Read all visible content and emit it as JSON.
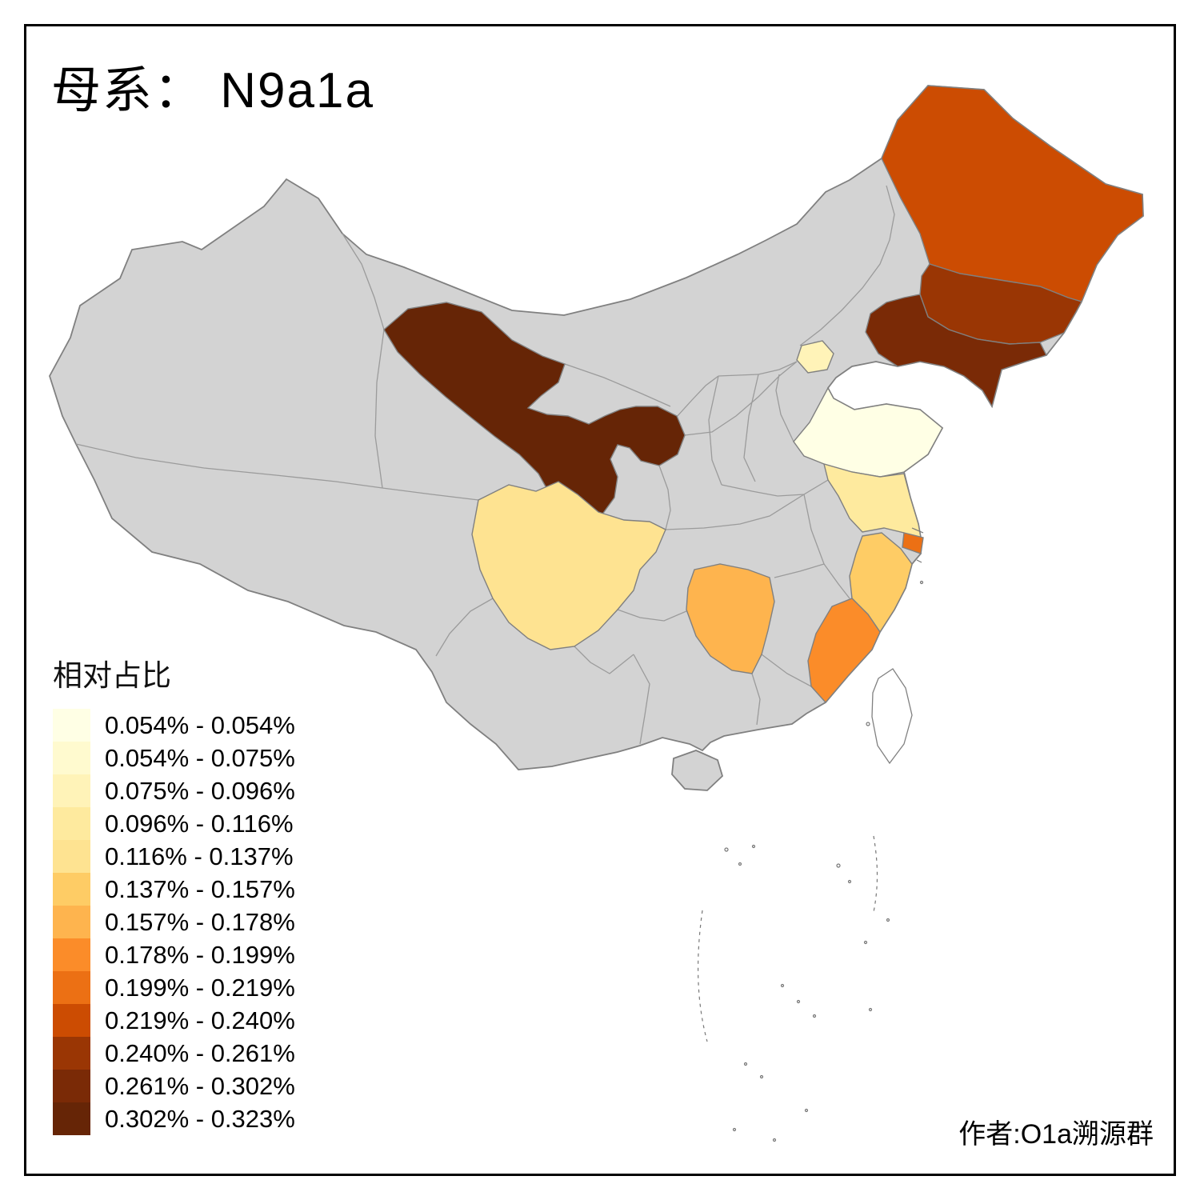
{
  "title": {
    "text": "母系： N9a1a"
  },
  "legend": {
    "title": "相对占比",
    "items": [
      {
        "label": "0.054% - 0.054%",
        "color": "#ffffe5"
      },
      {
        "label": "0.054% - 0.075%",
        "color": "#fffacf"
      },
      {
        "label": "0.075% - 0.096%",
        "color": "#fff3b8"
      },
      {
        "label": "0.096% - 0.116%",
        "color": "#feea9e"
      },
      {
        "label": "0.116% - 0.137%",
        "color": "#fee391"
      },
      {
        "label": "0.137% - 0.157%",
        "color": "#fecc65"
      },
      {
        "label": "0.157% - 0.178%",
        "color": "#feb44e"
      },
      {
        "label": "0.178% - 0.199%",
        "color": "#fb8c29"
      },
      {
        "label": "0.199% - 0.219%",
        "color": "#ec7014"
      },
      {
        "label": "0.219% - 0.240%",
        "color": "#cc4c02"
      },
      {
        "label": "0.240% - 0.261%",
        "color": "#9a3604"
      },
      {
        "label": "0.261% - 0.302%",
        "color": "#7a2a06"
      },
      {
        "label": "0.302% - 0.323%",
        "color": "#662506"
      }
    ]
  },
  "author": {
    "text": "作者:O1a溯源群"
  },
  "map": {
    "default_fill": "#d3d3d3",
    "border_color": "#808080",
    "inner_border_color": "#9b9b9b",
    "no_data_island_fill": "#ffffff",
    "provinces": [
      {
        "id": "shandong",
        "bucket": 0
      },
      {
        "id": "beijing",
        "bucket": 2
      },
      {
        "id": "jiangsu",
        "bucket": 3
      },
      {
        "id": "sichuan",
        "bucket": 4
      },
      {
        "id": "zhejiang",
        "bucket": 5
      },
      {
        "id": "hunan",
        "bucket": 6
      },
      {
        "id": "fujian",
        "bucket": 7
      },
      {
        "id": "shanghai",
        "bucket": 8
      },
      {
        "id": "heilongjiang",
        "bucket": 9
      },
      {
        "id": "jilin",
        "bucket": 10
      },
      {
        "id": "liaoning",
        "bucket": 11
      },
      {
        "id": "gansu",
        "bucket": 12
      }
    ]
  }
}
